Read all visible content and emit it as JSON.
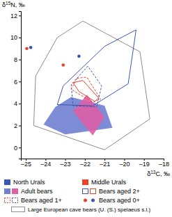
{
  "chart_data": {
    "type": "scatter",
    "x_label": "δ13C, ‰",
    "y_label": "δ15N, ‰",
    "xlim": [
      -25.25,
      -18
    ],
    "ylim": [
      -1,
      12.4
    ],
    "xticks": [
      {
        "value": -25,
        "label": "–25"
      },
      {
        "value": -24,
        "label": "–24"
      },
      {
        "value": -23,
        "label": "–23"
      },
      {
        "value": -22,
        "label": "–22"
      },
      {
        "value": -21,
        "label": "–21"
      },
      {
        "value": -20,
        "label": "–20"
      },
      {
        "value": -19,
        "label": "–19"
      },
      {
        "value": -18,
        "label": "–18"
      }
    ],
    "yticks": [
      0,
      2,
      4,
      6,
      8,
      10,
      12
    ],
    "series": [
      {
        "type": "polygon",
        "color": "#8c8c8c",
        "line_style": "solid",
        "x": [
          -22.1,
          -19.2,
          -18.7,
          -21.0,
          -24.6,
          -24.5,
          -23.4
        ],
        "values": [
          11.5,
          8.7,
          2.6,
          -0.2,
          2.0,
          6.5,
          10.0
        ]
      },
      {
        "type": "area",
        "color": "#6f80cf",
        "line_style": "none",
        "x": [
          -24.1,
          -23.0,
          -20.6,
          -21.0,
          -22.7,
          -23.5
        ],
        "values": [
          2.1,
          1.2,
          1.8,
          3.8,
          4.6,
          3.7
        ]
      },
      {
        "type": "area",
        "color": "#dd5fa6",
        "line_style": "none",
        "x": [
          -22.6,
          -21.6,
          -21.0,
          -21.9
        ],
        "values": [
          3.3,
          1.1,
          2.8,
          4.8
        ]
      },
      {
        "type": "polygon",
        "color": "#3b55b2",
        "line_style": "solid",
        "x": [
          -23.4,
          -21.6,
          -19.8,
          -19.4,
          -21.0,
          -23.1
        ],
        "values": [
          3.9,
          3.8,
          5.8,
          10.7,
          9.2,
          5.6
        ]
      },
      {
        "type": "polygon",
        "color": "#3b55b2",
        "line_style": "dashed",
        "x": [
          -21.85,
          -22.7,
          -22.6,
          -21.4,
          -21.15
        ],
        "values": [
          7.4,
          5.7,
          3.8,
          3.7,
          5.6
        ]
      },
      {
        "type": "polygon",
        "color": "#e8432b",
        "line_style": "solid",
        "x": [
          -22.6,
          -22.1,
          -21.3,
          -21.5,
          -22.3
        ],
        "values": [
          5.9,
          6.1,
          4.5,
          4.2,
          5.1
        ]
      },
      {
        "type": "polygon",
        "color": "#e8432b",
        "line_style": "dashed",
        "x": [
          -22.4,
          -21.9,
          -21.2,
          -21.6,
          -22.7
        ],
        "values": [
          6.3,
          6.4,
          4.4,
          4.1,
          5.3
        ]
      },
      {
        "type": "scatter",
        "color": "#3b55b2",
        "marker": "circle",
        "x": [
          -24.75,
          -22.3
        ],
        "values": [
          9.1,
          8.3
        ]
      },
      {
        "type": "scatter",
        "color": "#e8432b",
        "marker": "circle",
        "x": [
          -24.95,
          -23.1
        ],
        "values": [
          9.0,
          7.5
        ]
      }
    ],
    "legend_entries": [
      {
        "label": "North Urals",
        "marker": "square",
        "colors": [
          "#3b55b2"
        ]
      },
      {
        "label": "Middle Urals",
        "marker": "square",
        "colors": [
          "#e8432b"
        ]
      },
      {
        "label": "Adult bears",
        "marker": "square",
        "colors": [
          "#6f80cf",
          "#dd5fa6"
        ]
      },
      {
        "label": "Bears aged 2+",
        "marker": "outline",
        "colors": [
          "#3b55b2",
          "#e8432b"
        ]
      },
      {
        "label": "Bears aged 1+",
        "marker": "dashed",
        "colors": [
          "#e8432b",
          "#3b55b2"
        ]
      },
      {
        "label": "Bears aged 0+",
        "marker": "dot",
        "colors": [
          "#e8432b",
          "#3b55b2"
        ]
      },
      {
        "label": "Large European cave bears (U. (S.) spelaeus s.l.)",
        "marker": "outline",
        "colors": [
          "#8c8c8c"
        ]
      }
    ]
  }
}
